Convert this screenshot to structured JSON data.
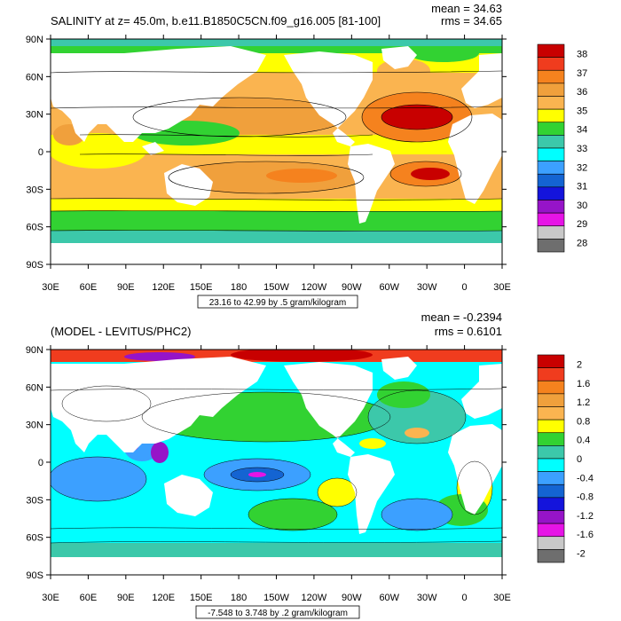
{
  "top_panel": {
    "title": "SALINITY at z=  45.0m, b.e11.B1850C5CN.f09_g16.005 [81-100]",
    "mean_label": "mean = 34.63",
    "rms_label": "rms = 34.65",
    "contour_note": "23.16 to 42.99 by .5 gram/kilogram",
    "lat_labels": [
      "90N",
      "60N",
      "30N",
      "0",
      "30S",
      "60S",
      "90S"
    ],
    "lon_labels": [
      "30E",
      "60E",
      "90E",
      "120E",
      "150E",
      "180",
      "150W",
      "120W",
      "90W",
      "60W",
      "30W",
      "0",
      "30E"
    ],
    "colorbar": {
      "labels": [
        "38",
        "37",
        "36",
        "35",
        "34",
        "33",
        "32",
        "31",
        "30",
        "29",
        "28"
      ],
      "colors": [
        "#c80000",
        "#f03c1e",
        "#f5821e",
        "#f0a03c",
        "#fab450",
        "#ffff00",
        "#32d232",
        "#3cc8aa",
        "#00ffff",
        "#3ca0ff",
        "#1464d2",
        "#1414dc",
        "#9614c8",
        "#e614e6",
        "#c8c8c8",
        "#6e6e6e"
      ]
    }
  },
  "bottom_panel": {
    "title": "(MODEL - LEVITUS/PHC2)",
    "mean_label": "mean = -0.2394",
    "rms_label": "rms = 0.6101",
    "contour_note": "-7.548 to 3.748 by .2 gram/kilogram",
    "lat_labels": [
      "90N",
      "60N",
      "30N",
      "0",
      "30S",
      "60S",
      "90S"
    ],
    "lon_labels": [
      "30E",
      "60E",
      "90E",
      "120E",
      "150E",
      "180",
      "150W",
      "120W",
      "90W",
      "60W",
      "30W",
      "0",
      "30E"
    ],
    "colorbar": {
      "labels": [
        "2",
        "1.6",
        "1.2",
        "0.8",
        "0.4",
        "0",
        "-0.4",
        "-0.8",
        "-1.2",
        "-1.6",
        "-2"
      ],
      "colors": [
        "#c80000",
        "#f03c1e",
        "#f5821e",
        "#f0a03c",
        "#fab450",
        "#ffff00",
        "#32d232",
        "#3cc8aa",
        "#00ffff",
        "#3ca0ff",
        "#1464d2",
        "#1414dc",
        "#9614c8",
        "#e614e6",
        "#c8c8c8",
        "#6e6e6e"
      ]
    }
  }
}
